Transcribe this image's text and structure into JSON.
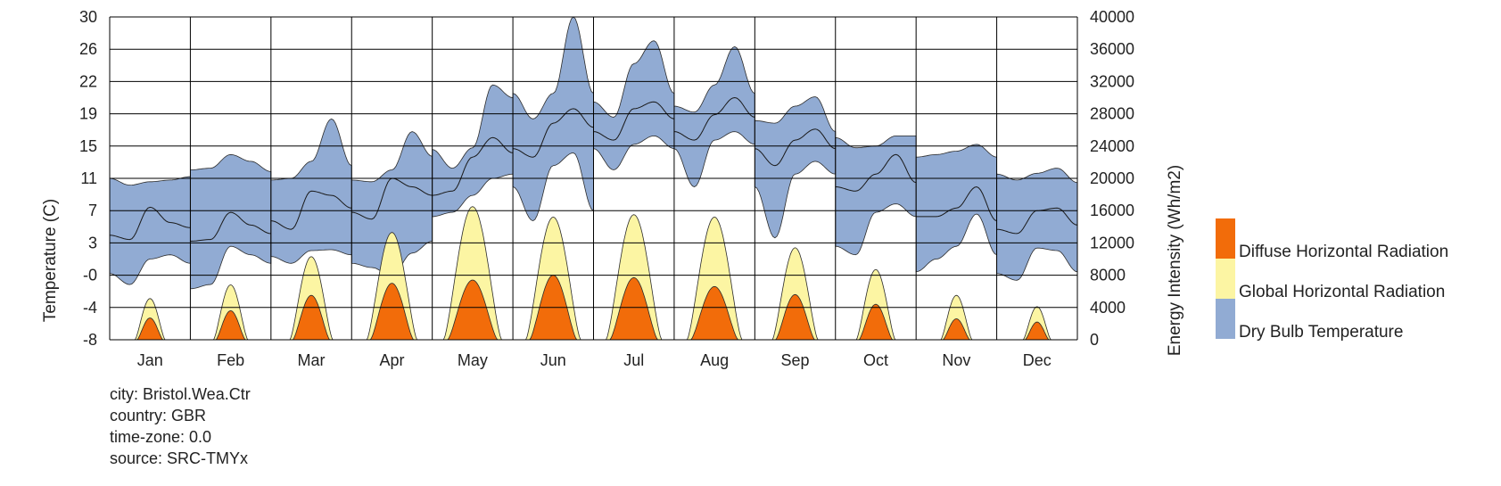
{
  "chart_data": {
    "type": "area",
    "title": "",
    "y_left": {
      "label": "Temperature (C)",
      "ticks": [
        "-8",
        "-4",
        "-0",
        "3",
        "7",
        "11",
        "15",
        "19",
        "22",
        "26",
        "30"
      ],
      "range": [
        -8,
        30
      ]
    },
    "y_right": {
      "label": "Energy Intensity (Wh/m2)",
      "ticks": [
        "0",
        "4000",
        "8000",
        "12000",
        "16000",
        "20000",
        "24000",
        "28000",
        "32000",
        "36000",
        "40000"
      ],
      "range": [
        0,
        40000
      ]
    },
    "categories": [
      "Jan",
      "Feb",
      "Mar",
      "Apr",
      "May",
      "Jun",
      "Jul",
      "Aug",
      "Sep",
      "Oct",
      "Nov",
      "Dec"
    ],
    "grid": true,
    "legend_position": "right",
    "series": [
      {
        "name": "Diffuse Horizontal Radiation",
        "color": "#f26c0a",
        "unit": "Wh/m2",
        "peak": [
          2700,
          3600,
          5500,
          7000,
          7400,
          8000,
          7700,
          6600,
          5600,
          4400,
          2600,
          2200
        ]
      },
      {
        "name": "Global Horizontal Radiation",
        "color": "#fcf5a3",
        "unit": "Wh/m2",
        "peak": [
          5100,
          6800,
          10300,
          13300,
          16500,
          15200,
          15500,
          15200,
          11400,
          8700,
          5500,
          4100
        ]
      },
      {
        "name": "Dry Bulb Temperature",
        "color": "#91abd3",
        "unit": "C",
        "months": [
          {
            "min": [
              -0.2,
              -1.5,
              1.5,
              2.0,
              1.0
            ],
            "mean": [
              4.3,
              3.8,
              7.6,
              5.8,
              5.2
            ],
            "max": [
              11.0,
              10.2,
              10.6,
              10.8,
              11.2
            ]
          },
          {
            "min": [
              -2.0,
              -1.5,
              3.0,
              2.0,
              1.0
            ],
            "mean": [
              3.6,
              3.8,
              7.0,
              5.5,
              4.5
            ],
            "max": [
              12.0,
              12.2,
              13.8,
              13.0,
              11.8
            ]
          },
          {
            "min": [
              1.8,
              1.0,
              2.5,
              2.6,
              2.0
            ],
            "mean": [
              6.0,
              5.0,
              9.5,
              9.0,
              7.5
            ],
            "max": [
              10.8,
              11.0,
              13.0,
              18.0,
              12.5
            ]
          },
          {
            "min": [
              1.0,
              0.5,
              -0.5,
              2.2,
              3.6
            ],
            "mean": [
              7.0,
              6.2,
              11.0,
              10.0,
              9.0
            ],
            "max": [
              10.8,
              10.6,
              12.0,
              16.5,
              13.6
            ]
          },
          {
            "min": [
              6.5,
              7.0,
              9.0,
              11.0,
              11.5
            ],
            "mean": [
              9.0,
              9.5,
              13.5,
              15.8,
              14.0
            ],
            "max": [
              14.4,
              12.2,
              14.6,
              22.0,
              20.5
            ]
          },
          {
            "min": [
              10.0,
              6.0,
              12.5,
              14.0,
              7.2
            ],
            "mean": [
              14.5,
              13.5,
              17.5,
              19.2,
              17.0
            ],
            "max": [
              21.0,
              18.0,
              21.0,
              30.0,
              21.0
            ]
          },
          {
            "min": [
              14.5,
              12.0,
              15.0,
              16.0,
              14.5
            ],
            "mean": [
              16.5,
              15.5,
              19.2,
              20.0,
              18.0
            ],
            "max": [
              20.0,
              18.2,
              24.5,
              27.2,
              21.0
            ]
          },
          {
            "min": [
              14.5,
              10.0,
              15.5,
              16.5,
              15.0
            ],
            "mean": [
              16.5,
              15.5,
              18.5,
              20.5,
              18.2
            ],
            "max": [
              19.5,
              18.8,
              22.0,
              26.5,
              21.0
            ]
          },
          {
            "min": [
              10.0,
              4.0,
              11.5,
              13.0,
              11.5
            ],
            "mean": [
              14.5,
              12.5,
              15.5,
              16.8,
              14.5
            ],
            "max": [
              17.8,
              17.5,
              19.5,
              20.6,
              16.5
            ]
          },
          {
            "min": [
              3.0,
              2.0,
              7.0,
              8.0,
              6.5
            ],
            "mean": [
              10.0,
              9.5,
              11.5,
              13.8,
              10.5
            ],
            "max": [
              15.8,
              14.6,
              14.8,
              16.0,
              16.0
            ]
          },
          {
            "min": [
              0.0,
              1.5,
              3.0,
              6.8,
              2.0
            ],
            "mean": [
              6.5,
              6.5,
              7.5,
              10.0,
              6.0
            ],
            "max": [
              13.5,
              13.8,
              14.2,
              15.0,
              13.5
            ]
          },
          {
            "min": [
              -0.2,
              -1.0,
              2.8,
              2.5,
              0.0
            ],
            "mean": [
              5.0,
              4.5,
              7.2,
              7.5,
              5.5
            ],
            "max": [
              11.5,
              10.8,
              11.6,
              12.2,
              10.5
            ]
          }
        ]
      }
    ]
  },
  "legend": [
    {
      "label": "Diffuse Horizontal Radiation",
      "color": "#f26c0a"
    },
    {
      "label": "Global Horizontal Radiation",
      "color": "#fcf5a3"
    },
    {
      "label": "Dry Bulb Temperature",
      "color": "#91abd3"
    }
  ],
  "meta": {
    "city": "city: Bristol.Wea.Ctr",
    "country": "country: GBR",
    "timezone": "time-zone: 0.0",
    "source": "source: SRC-TMYx"
  }
}
